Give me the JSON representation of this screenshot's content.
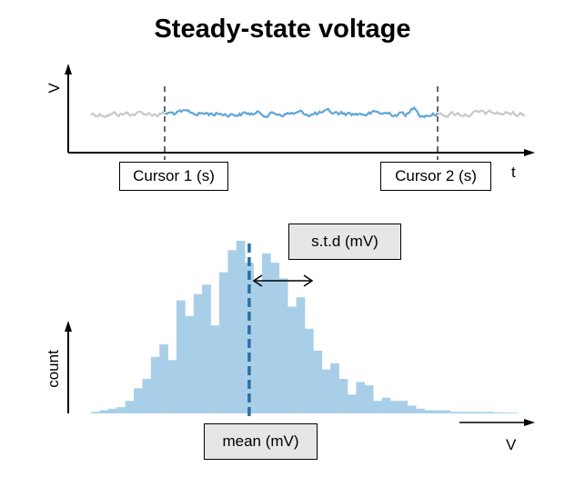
{
  "title": "Steady-state voltage",
  "trace_panel": {
    "ylabel": "V",
    "xlabel": "t",
    "cursor1_label": "Cursor 1 (s)",
    "cursor2_label": "Cursor 2 (s)",
    "colors": {
      "outside": "#c8c8c8",
      "inside": "#5fa6d6",
      "axis": "#000000"
    }
  },
  "histogram_panel": {
    "ylabel": "count",
    "xlabel": "V",
    "std_label": "s.t.d (mV)",
    "mean_label": "mean (mV)",
    "colors": {
      "bars": "#a9cfe8",
      "mean_line": "#2a6ea6",
      "axis": "#000000"
    }
  },
  "chart_data": {
    "type": "bar",
    "title": "",
    "xlabel": "V",
    "ylabel": "count",
    "values": [
      0.5,
      1,
      1.5,
      2,
      4,
      8,
      11,
      18,
      22,
      17,
      36,
      31,
      38,
      41,
      28,
      45,
      52,
      55,
      48,
      42,
      51,
      48,
      43,
      34,
      37,
      27,
      20,
      14,
      16,
      11,
      6,
      10,
      9,
      4,
      5,
      4,
      4,
      2.5,
      1.5,
      1,
      1,
      1,
      0.5,
      0.5,
      0.5,
      0.5,
      0.5,
      0.3,
      0.3,
      0.2
    ],
    "mean_bin": 18.5,
    "grid": false
  }
}
